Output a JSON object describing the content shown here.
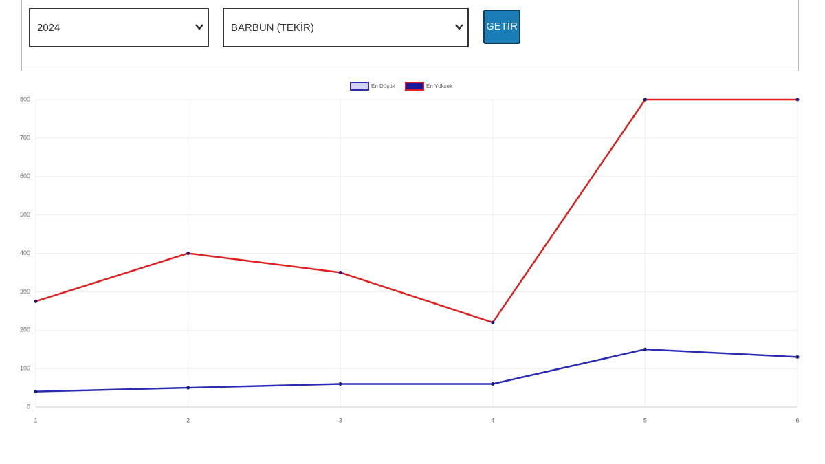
{
  "form": {
    "year": "2024",
    "species": "BARBUN (TEKİR)",
    "button": "GETİR"
  },
  "chart_data": {
    "type": "line",
    "categories": [
      "1",
      "2",
      "3",
      "4",
      "5",
      "6"
    ],
    "series": [
      {
        "name": "En Düşük",
        "color": "#2b2bb3",
        "fill": "#d4d4f2",
        "point_color": "#1a1a80",
        "values": [
          40,
          50,
          60,
          60,
          150,
          130
        ]
      },
      {
        "name": "En Yüksek",
        "color": "#e02020",
        "fill": "#1a1a9e",
        "point_color": "#1a1a80",
        "values": [
          275,
          400,
          350,
          220,
          800,
          800
        ]
      }
    ],
    "ylim": [
      0,
      800
    ],
    "yticks": [
      0,
      100,
      200,
      300,
      400,
      500,
      600,
      700,
      800
    ],
    "grid": true
  }
}
